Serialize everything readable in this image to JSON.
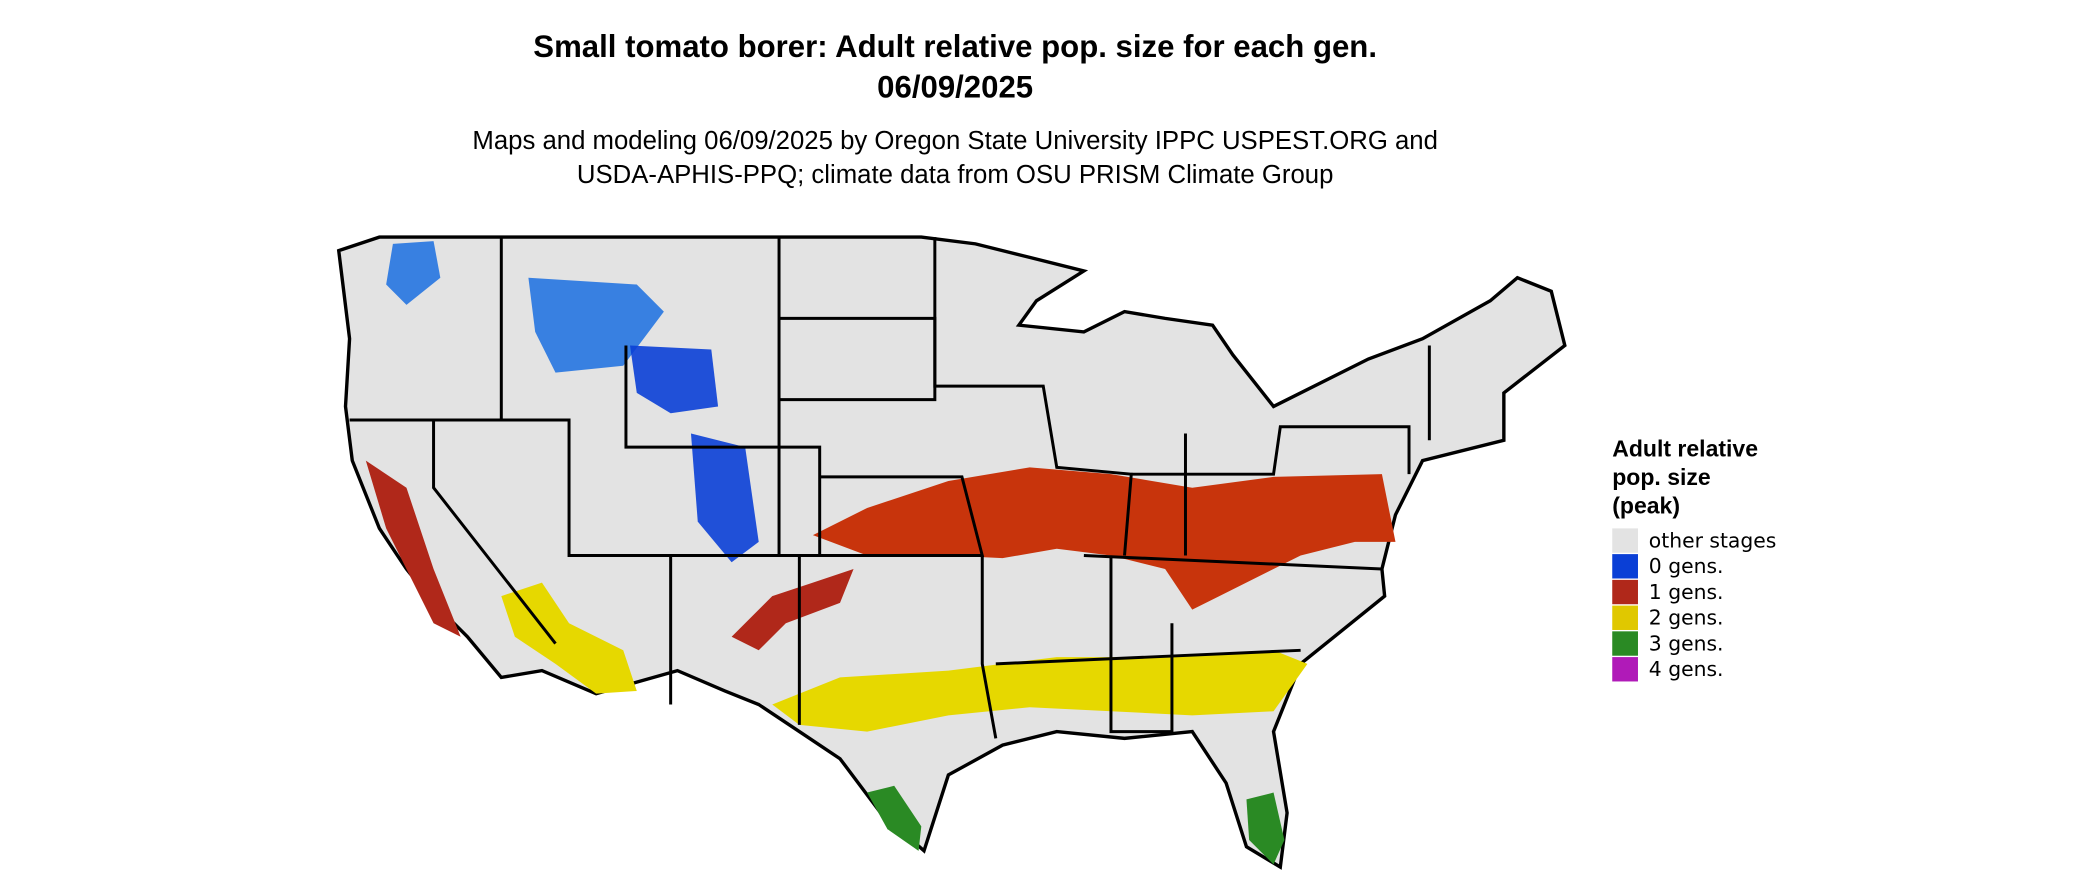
{
  "header": {
    "title": [
      "Small tomato borer: Adult relative pop. size for each gen.",
      "06/09/2025"
    ],
    "subtitle": [
      "Maps and modeling 06/09/2025 by Oregon State University IPPC USPEST.ORG and",
      "USDA-APHIS-PPQ; climate data from OSU PRISM Climate Group"
    ]
  },
  "legend": {
    "title": [
      "Adult relative",
      "pop. size",
      "(peak)"
    ],
    "items": [
      {
        "label": "other stages",
        "color": "#e3e3e3"
      },
      {
        "label": "0 gens.",
        "color": "#0a3fd6"
      },
      {
        "label": "1 gens.",
        "color": "#b0281a"
      },
      {
        "label": "2 gens.",
        "color": "#e0c800"
      },
      {
        "label": "3 gens.",
        "color": "#2a8a24"
      },
      {
        "label": "4 gens.",
        "color": "#b01ab8"
      }
    ]
  }
}
